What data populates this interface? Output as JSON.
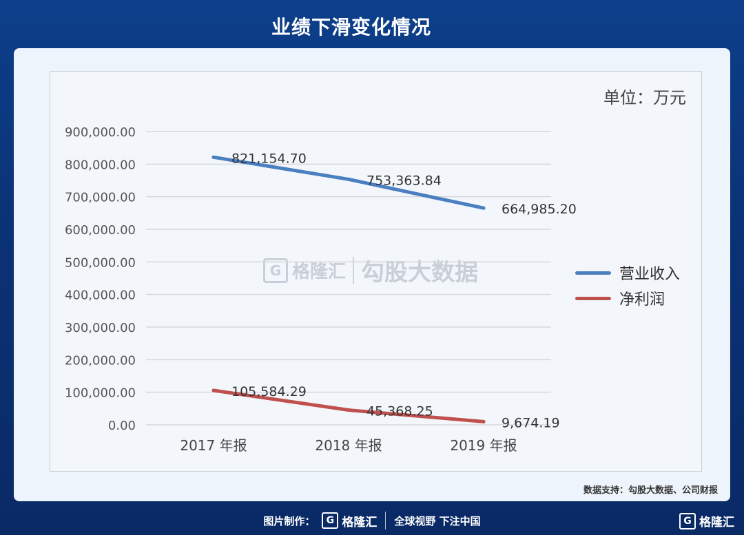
{
  "title": "业绩下滑变化情况",
  "unit": "单位：万元",
  "source": "数据支持：勾股大数据、公司财报",
  "watermark": {
    "brand": "格隆汇",
    "text": "勾股大数据"
  },
  "footer": {
    "label": "图片制作：",
    "brand": "格隆汇",
    "slogan": "全球视野 下注中国",
    "corner_brand": "格隆汇"
  },
  "colors": {
    "revenue": "#4a7fc1",
    "profit": "#c0504d"
  },
  "chart_data": {
    "type": "line",
    "categories": [
      "2017 年报",
      "2018 年报",
      "2019 年报"
    ],
    "series": [
      {
        "name": "营业收入",
        "values": [
          821154.7,
          753363.84,
          664985.2
        ],
        "labels": [
          "821,154.70",
          "753,363.84",
          "664,985.20"
        ]
      },
      {
        "name": "净利润",
        "values": [
          105584.29,
          45368.25,
          9674.19
        ],
        "labels": [
          "105,584.29",
          "45,368.25",
          "9,674.19"
        ]
      }
    ],
    "yticks": [
      "0.00",
      "100,000.00",
      "200,000.00",
      "300,000.00",
      "400,000.00",
      "500,000.00",
      "600,000.00",
      "700,000.00",
      "800,000.00",
      "900,000.00"
    ],
    "ylim": [
      0,
      900000
    ],
    "grid": true,
    "legend": "right"
  }
}
